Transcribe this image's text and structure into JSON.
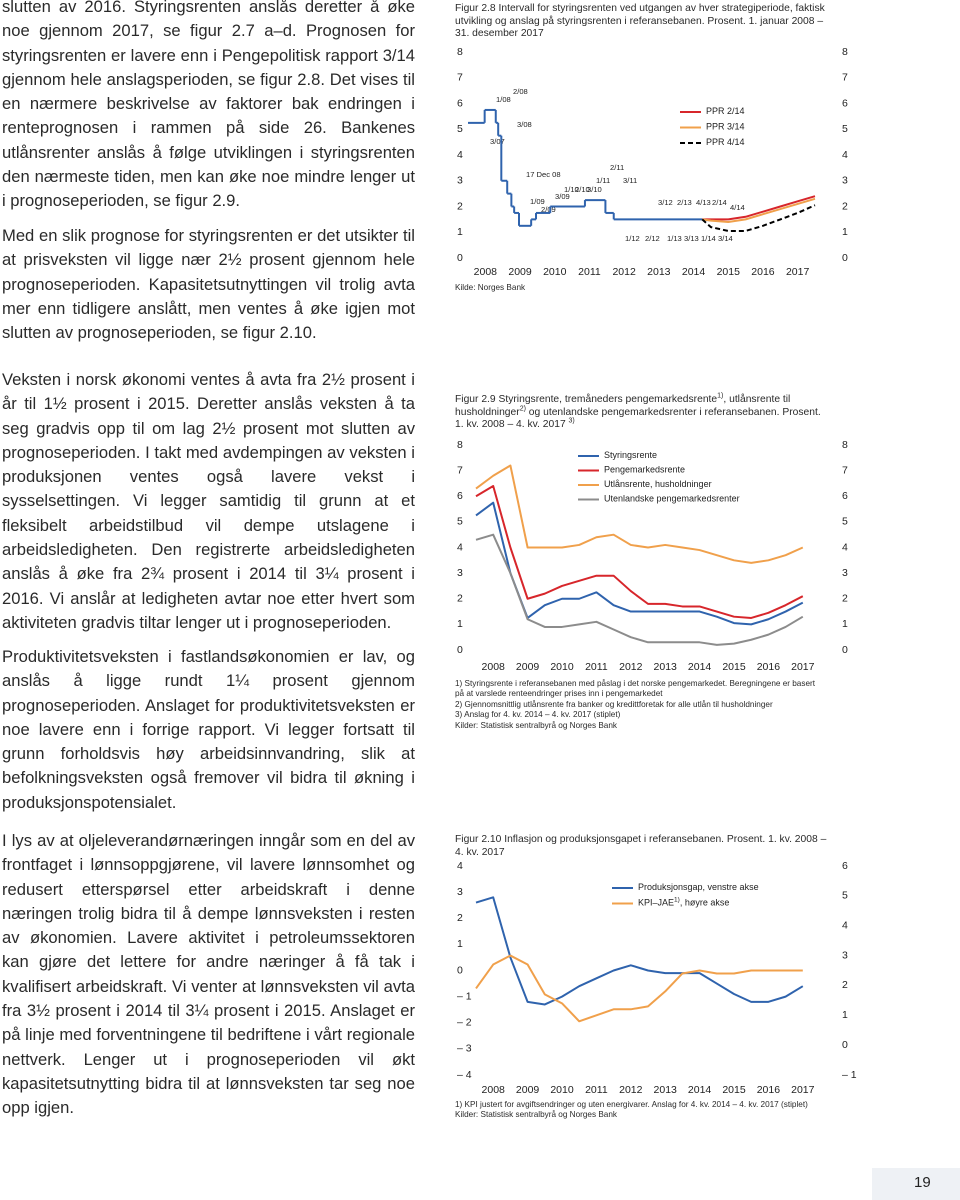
{
  "document": {
    "paragraphs": [
      "slutten av 2016. Styringsrenten anslås deretter å øke noe gjennom 2017, se figur 2.7 a–d. Prognosen for styringsrenten er lavere enn i Pengepolitisk rapport 3/14 gjennom hele anslagsperioden, se figur 2.8. Det vises til en nærmere beskrivelse av faktorer bak endringen i renteprognosen i rammen på side 26. Bankenes utlånsrenter anslås å følge utviklingen i styringsrenten den nærmeste tiden, men kan øke noe mindre lenger ut i prognoseperioden, se figur 2.9.",
      "Med en slik prognose for styringsrenten er det utsikter til at prisveksten vil ligge nær 2½ prosent gjennom hele prognoseperioden. Kapasitetsutnyttingen vil trolig avta mer enn tidligere anslått, men ventes å øke igjen mot slutten av prognoseperioden, se figur 2.10.",
      "Veksten i norsk økonomi ventes å avta fra 2½ prosent i år til 1½ prosent i 2015. Deretter anslås veksten å ta seg gradvis opp til om lag 2½ prosent mot slutten av prognoseperioden. I takt med avdempingen av veksten i produksjonen ventes også lavere vekst i sysselsettingen. Vi legger samtidig til grunn at et fleksibelt arbeidstilbud vil dempe utslagene i arbeidsledigheten. Den registrerte arbeidsledigheten anslås å øke fra 2¾ prosent i 2014 til 3¼ prosent i 2016. Vi anslår at ledigheten avtar noe etter hvert som aktiviteten gradvis tiltar lenger ut i prognoseperioden.",
      "Produktivitetsveksten i fastlandsøkonomien er lav, og anslås å ligge rundt 1¼ prosent gjennom prognoseperioden. Anslaget for produktivitetsveksten er noe lavere enn i forrige rapport. Vi legger fortsatt til grunn forholdsvis høy arbeidsinnvandring, slik at befolkningsveksten også fremover vil bidra til økning i produksjonspotensialet.",
      "I lys av at oljeleverandørnæringen inngår som en del av frontfaget i lønnsoppgjørene, vil lavere lønnsomhet og redusert etterspørsel etter arbeidskraft i denne næringen trolig bidra til å dempe lønnsveksten i resten av økonomien. Lavere aktivitet i petroleumssektoren kan gjøre det lettere for andre næringer å få tak i kvalifisert arbeidskraft. Vi venter at lønnsveksten vil avta fra 3½ prosent i 2014 til 3¼ prosent i 2015. Anslaget er på linje med forventningene til bedriftene i vårt regionale nettverk. Lenger ut i prognoseperioden vil økt kapasitetsutnytting bidra til at lønnsveksten tar seg noe opp igjen."
    ],
    "page_number": "19"
  },
  "chart_data": [
    {
      "type": "line",
      "title": "Figur 2.8 Intervall for styringsrenten ved utgangen av hver strategiperiode, faktisk utvikling og anslag på styringsrenten i referansebanen. Prosent. 1. januar 2008 – 31. desember 2017",
      "source": "Kilde: Norges Bank",
      "xlim": [
        2008,
        2018
      ],
      "xticks": [
        {
          "value": 2008.5,
          "label": "2008"
        },
        {
          "value": 2009.5,
          "label": "2009"
        },
        {
          "value": 2010.5,
          "label": "2010"
        },
        {
          "value": 2011.5,
          "label": "2011"
        },
        {
          "value": 2012.5,
          "label": "2012"
        },
        {
          "value": 2013.5,
          "label": "2013"
        },
        {
          "value": 2014.5,
          "label": "2014"
        },
        {
          "value": 2015.5,
          "label": "2015"
        },
        {
          "value": 2016.5,
          "label": "2016"
        },
        {
          "value": 2017.5,
          "label": "2017"
        }
      ],
      "ylim": [
        0,
        8
      ],
      "yticks": [
        0,
        1,
        2,
        3,
        4,
        5,
        6,
        7,
        8
      ],
      "y2lim": [
        0,
        8
      ],
      "y2ticks": [
        0,
        1,
        2,
        3,
        4,
        5,
        6,
        7,
        8
      ],
      "annotations": [
        "2/08",
        "1/08",
        "3/08",
        "3/07",
        "17 Dec 08",
        "2/11",
        "1/11",
        "3/11",
        "1/10",
        "2/10",
        "3/10",
        "3/09",
        "1/09",
        "2/09",
        "3/12",
        "2/13",
        "4/13",
        "2/14",
        "4/14",
        "1/12",
        "2/12",
        "1/13",
        "3/13",
        "1/14",
        "3/14"
      ],
      "series": [
        {
          "style": "step",
          "color": "#2f63ad",
          "x": [
            2008.0,
            2008.48,
            2008.8,
            2008.87,
            2008.96,
            2009.13,
            2009.25,
            2009.33,
            2009.47,
            2009.82,
            2009.96,
            2010.37,
            2011.37,
            2011.96,
            2012.2,
            2014.75
          ],
          "values": [
            5.25,
            5.75,
            5.25,
            4.75,
            3.0,
            2.5,
            2.0,
            1.75,
            1.25,
            1.5,
            1.75,
            2.0,
            2.25,
            1.75,
            1.5,
            1.5
          ]
        },
        {
          "name": "PPR 2/14",
          "color": "#d7262b",
          "x": [
            2014.75,
            2015,
            2015.5,
            2016,
            2016.5,
            2017,
            2017.5,
            2018
          ],
          "values": [
            1.5,
            1.5,
            1.5,
            1.6,
            1.8,
            2.0,
            2.2,
            2.4
          ]
        },
        {
          "name": "PPR 3/14",
          "color": "#f0a04b",
          "x": [
            2014.75,
            2015,
            2015.5,
            2016,
            2016.5,
            2017,
            2017.5,
            2018
          ],
          "values": [
            1.5,
            1.45,
            1.4,
            1.5,
            1.7,
            1.9,
            2.1,
            2.3
          ]
        },
        {
          "name": "PPR 4/14",
          "color": "#000000",
          "dashed": true,
          "x": [
            2014.75,
            2015,
            2015.5,
            2016,
            2016.5,
            2017,
            2017.5,
            2018
          ],
          "values": [
            1.5,
            1.2,
            1.05,
            1.05,
            1.25,
            1.5,
            1.75,
            2.05
          ]
        }
      ]
    },
    {
      "type": "line",
      "title_parts": [
        "Figur 2.9 Styringsrente, tremåneders pengemarkedsrente",
        "1)",
        ", utlånsrente til husholdninger",
        "2)",
        " og utenlandske pengemarkedsrenter i referansebanen. Prosent. 1. kv. 2008 – 4. kv. 2017 ",
        "3)"
      ],
      "notes": [
        "1) Styringsrente i referansebanen med påslag i det norske pengemarkedet. Beregningene er basert på at varslede renteendringer prises inn i pengemarkedet",
        "2) Gjennomsnittlig utlånsrente fra banker og kredittforetak for alle utlån til husholdninger",
        "3) Anslag for 4. kv. 2014 – 4. kv. 2017 (stiplet)",
        "Kilder: Statistisk sentralbyrå og Norges Bank"
      ],
      "xlim": [
        2008,
        2018
      ],
      "xticks": [
        {
          "value": 2008.5,
          "label": "2008"
        },
        {
          "value": 2009.5,
          "label": "2009"
        },
        {
          "value": 2010.5,
          "label": "2010"
        },
        {
          "value": 2011.5,
          "label": "2011"
        },
        {
          "value": 2012.5,
          "label": "2012"
        },
        {
          "value": 2013.5,
          "label": "2013"
        },
        {
          "value": 2014.5,
          "label": "2014"
        },
        {
          "value": 2015.5,
          "label": "2015"
        },
        {
          "value": 2016.5,
          "label": "2016"
        },
        {
          "value": 2017.5,
          "label": "2017"
        }
      ],
      "ylim": [
        0,
        8
      ],
      "yticks": [
        0,
        1,
        2,
        3,
        4,
        5,
        6,
        7,
        8
      ],
      "y2lim": [
        0,
        8
      ],
      "y2ticks": [
        0,
        1,
        2,
        3,
        4,
        5,
        6,
        7,
        8
      ],
      "x": [
        2008.0,
        2008.5,
        2009.0,
        2009.5,
        2010.0,
        2010.5,
        2011.0,
        2011.5,
        2012.0,
        2012.5,
        2013.0,
        2013.5,
        2014.0,
        2014.5,
        2015.0,
        2015.5,
        2016.0,
        2016.5,
        2017.0,
        2017.5
      ],
      "series": [
        {
          "name": "Styringsrente",
          "color": "#2f63ad",
          "values": [
            5.25,
            5.75,
            3.0,
            1.25,
            1.75,
            2.0,
            2.0,
            2.25,
            1.75,
            1.5,
            1.5,
            1.5,
            1.5,
            1.5,
            1.3,
            1.05,
            1.0,
            1.2,
            1.5,
            1.85
          ]
        },
        {
          "name": "Pengemarkedsrente",
          "color": "#d7262b",
          "values": [
            6.0,
            6.4,
            4.0,
            2.0,
            2.2,
            2.5,
            2.7,
            2.9,
            2.9,
            2.3,
            1.8,
            1.8,
            1.7,
            1.7,
            1.5,
            1.3,
            1.25,
            1.45,
            1.75,
            2.1
          ]
        },
        {
          "name": "Utlånsrente, husholdninger",
          "color": "#f0a04b",
          "values": [
            6.3,
            6.8,
            7.2,
            4.0,
            4.0,
            4.0,
            4.1,
            4.4,
            4.5,
            4.1,
            4.0,
            4.1,
            4.0,
            3.9,
            3.7,
            3.5,
            3.4,
            3.5,
            3.7,
            4.0
          ]
        },
        {
          "name": "Utenlandske pengemarkedsrenter",
          "color": "#8c8c8c",
          "values": [
            4.3,
            4.5,
            3.0,
            1.2,
            0.9,
            0.9,
            1.0,
            1.1,
            0.8,
            0.5,
            0.3,
            0.3,
            0.3,
            0.3,
            0.2,
            0.25,
            0.4,
            0.6,
            0.9,
            1.3
          ]
        }
      ]
    },
    {
      "type": "line",
      "title": "Figur 2.10 Inflasjon og produksjonsgapet i referansebanen. Prosent. 1. kv. 2008 – 4. kv. 2017",
      "notes": [
        "1) KPI justert for avgiftsendringer og uten energivarer. Anslag for 4. kv. 2014 – 4. kv. 2017 (stiplet)",
        "Kilder: Statistisk sentralbyrå og Norges Bank"
      ],
      "xlim": [
        2008,
        2018
      ],
      "xticks": [
        {
          "value": 2008.5,
          "label": "2008"
        },
        {
          "value": 2009.5,
          "label": "2009"
        },
        {
          "value": 2010.5,
          "label": "2010"
        },
        {
          "value": 2011.5,
          "label": "2011"
        },
        {
          "value": 2012.5,
          "label": "2012"
        },
        {
          "value": 2013.5,
          "label": "2013"
        },
        {
          "value": 2014.5,
          "label": "2014"
        },
        {
          "value": 2015.5,
          "label": "2015"
        },
        {
          "value": 2016.5,
          "label": "2016"
        },
        {
          "value": 2017.5,
          "label": "2017"
        }
      ],
      "ylim": [
        -4,
        4
      ],
      "yticks": [
        {
          "value": -4,
          "label": "– 4"
        },
        {
          "value": -3,
          "label": "– 3"
        },
        {
          "value": -2,
          "label": "– 2"
        },
        {
          "value": -1,
          "label": "– 1"
        },
        0,
        1,
        2,
        3,
        4
      ],
      "y2lim": [
        -1,
        6
      ],
      "y2ticks": [
        {
          "value": -1,
          "label": "– 1"
        },
        0,
        1,
        2,
        3,
        4,
        5,
        6
      ],
      "x": [
        2008.0,
        2008.5,
        2009.0,
        2009.5,
        2010.0,
        2010.5,
        2011.0,
        2011.5,
        2012.0,
        2012.5,
        2013.0,
        2013.5,
        2014.0,
        2014.5,
        2015.0,
        2015.5,
        2016.0,
        2016.5,
        2017.0,
        2017.5
      ],
      "series": [
        {
          "name": "Produksjonsgap, venstre akse",
          "color": "#2f63ad",
          "values": [
            2.6,
            2.8,
            0.5,
            -1.2,
            -1.3,
            -1.0,
            -0.6,
            -0.3,
            0.0,
            0.2,
            0.0,
            -0.1,
            -0.1,
            -0.1,
            -0.5,
            -0.9,
            -1.2,
            -1.2,
            -1.0,
            -0.6
          ]
        },
        {
          "name": "KPI–JAE",
          "name_sup": "1)",
          "name_suffix": ", høyre akse",
          "color": "#f0a04b",
          "axis": "y2",
          "values": [
            1.9,
            2.7,
            3.0,
            2.7,
            1.7,
            1.4,
            0.8,
            1.0,
            1.2,
            1.2,
            1.3,
            1.8,
            2.4,
            2.5,
            2.4,
            2.4,
            2.5,
            2.5,
            2.5,
            2.5
          ]
        }
      ]
    }
  ]
}
